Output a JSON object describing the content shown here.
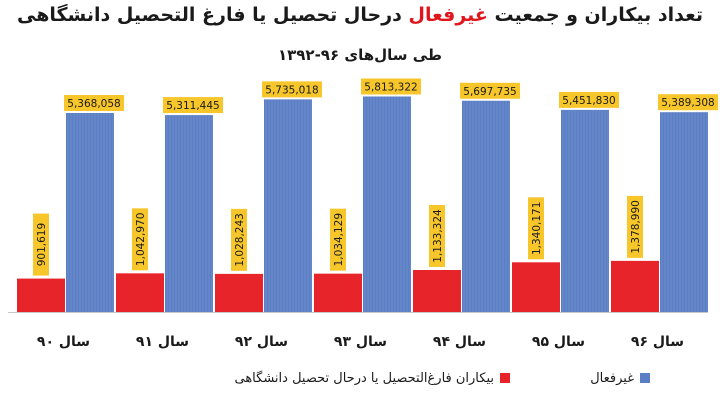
{
  "chart_data": {
    "type": "bar",
    "title": "تعداد بیکاران و جمعیت غیرفعال درحال تحصیل یا فارغ التحصیل دانشگاهی",
    "title_parts": {
      "before": "تعداد بیکاران و جمعیت ",
      "highlight": "غیرفعال",
      "after": " درحال تحصیل یا فارغ التحصیل دانشگاهی"
    },
    "subtitle": "طی سال‌های ۹۶-۱۳۹۲",
    "categories": [
      "سال ۹۰",
      "سال ۹۱",
      "سال ۹۲",
      "سال ۹۳",
      "سال ۹۴",
      "سال ۹۵",
      "سال ۹۶"
    ],
    "series": [
      {
        "name": "بیکاران فارغ‌التحصیل یا درحال تحصیل دانشگاهی",
        "color": "#e8242b",
        "values": [
          901619,
          1042970,
          1028243,
          1034129,
          1133324,
          1340171,
          1378990
        ],
        "labels": [
          "901,619",
          "1,042,970",
          "1,028,243",
          "1,034,129",
          "1,133,324",
          "1,340,171",
          "1,378,990"
        ]
      },
      {
        "name": "غیرفعال",
        "color": "#5b7fc4",
        "values": [
          5368058,
          5311445,
          5735018,
          5813322,
          5697735,
          5451830,
          5389308
        ],
        "labels": [
          "5,368,058",
          "5,311,445",
          "5,735,018",
          "5,813,322",
          "5,697,735",
          "5,451,830",
          "5,389,308"
        ]
      }
    ],
    "label_bg": "#f7c62b",
    "ylim": [
      0,
      6150000
    ],
    "grid": false,
    "legend_position": "bottom"
  }
}
